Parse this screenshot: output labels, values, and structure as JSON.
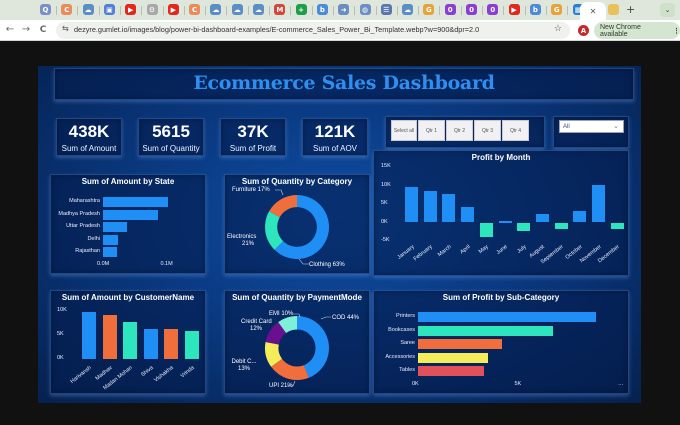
{
  "browser": {
    "tab_favicons": [
      {
        "name": "search-tab",
        "color": "#7b8fc7",
        "glyph": "Q"
      },
      {
        "name": "orange-tab",
        "color": "#e98b5a",
        "glyph": "C"
      },
      {
        "name": "cloud-tab",
        "color": "#5c8dc4",
        "glyph": "☁"
      },
      {
        "name": "docs-tab",
        "color": "#4f7fd6",
        "glyph": "▣"
      },
      {
        "name": "youtube-tab",
        "color": "#e0281f",
        "glyph": "▶"
      },
      {
        "name": "gear-tab",
        "color": "#a8a8a8",
        "glyph": "⚙"
      },
      {
        "name": "youtube-tab",
        "color": "#e0281f",
        "glyph": "▶"
      },
      {
        "name": "orange-tab",
        "color": "#e98b5a",
        "glyph": "C"
      },
      {
        "name": "cloud-tab",
        "color": "#5c8dc4",
        "glyph": "☁"
      },
      {
        "name": "cloud-tab",
        "color": "#5c8dc4",
        "glyph": "☁"
      },
      {
        "name": "cloud-tab",
        "color": "#5c8dc4",
        "glyph": "☁"
      },
      {
        "name": "gmail-tab",
        "color": "#d44638",
        "glyph": "M"
      },
      {
        "name": "sheets-tab",
        "color": "#1e9e4a",
        "glyph": "+"
      },
      {
        "name": "bing-tab",
        "color": "#4d8bd9",
        "glyph": "b"
      },
      {
        "name": "arrow-tab",
        "color": "#6c8dc0",
        "glyph": "➜"
      },
      {
        "name": "globe-tab",
        "color": "#6f8ec4",
        "glyph": "◍"
      },
      {
        "name": "list-tab",
        "color": "#5a77b0",
        "glyph": "☰"
      },
      {
        "name": "cloud-tab",
        "color": "#5c8dc4",
        "glyph": "☁"
      },
      {
        "name": "google-tab",
        "color": "#e8a23a",
        "glyph": "G"
      },
      {
        "name": "purple-tab",
        "color": "#8b3fd0",
        "glyph": "0"
      },
      {
        "name": "purple-tab",
        "color": "#8b3fd0",
        "glyph": "0"
      },
      {
        "name": "purple-tab",
        "color": "#8b3fd0",
        "glyph": "0"
      },
      {
        "name": "youtube-tab",
        "color": "#e0281f",
        "glyph": "▶"
      },
      {
        "name": "bing-tab",
        "color": "#4d8bd9",
        "glyph": "b"
      },
      {
        "name": "google-tab",
        "color": "#e8a23a",
        "glyph": "G"
      },
      {
        "name": "blue-tab",
        "color": "#2b7fd0",
        "glyph": "▦"
      }
    ],
    "active_tab_close": "✕",
    "extra_tab_color": "#e8c15a",
    "new_tab": "+",
    "tab_menu": "⌄",
    "url": "dezyre.gumlet.io/images/blog/power-bi-dashboard-examples/E-commerce_Sales_Power_Bi_Template.webp?w=900&dpr=2.0",
    "profile_initial": "A",
    "update_chip": "New Chrome available",
    "update_menu": "⋮",
    "back": "←",
    "forward": "→",
    "reload": "C",
    "site_info": "⇆",
    "bookmark": "☆"
  },
  "dashboard": {
    "title": "Ecommerce Sales Dashboard",
    "kpis": [
      {
        "value": "438K",
        "label": "Sum of Amount"
      },
      {
        "value": "5615",
        "label": "Sum of Quantity"
      },
      {
        "value": "37K",
        "label": "Sum of Profit"
      },
      {
        "value": "121K",
        "label": "Sum of AOV"
      }
    ],
    "quarter_slicer": [
      "Select all",
      "Qtr 1",
      "Qtr 2",
      "Qtr 3",
      "Qtr 4"
    ],
    "dropdown": {
      "value": "All",
      "chevron": "⌄"
    },
    "colors": {
      "title": "#2f8ff0",
      "blue": "#1f8ff5",
      "teal": "#2ee6be",
      "orange": "#f06e3c",
      "yellow": "#f4ec58",
      "purple": "#6a0f8e",
      "red": "#e0515a",
      "mint": "#7ff0d8"
    }
  },
  "chart_data": [
    {
      "type": "bar",
      "orientation": "horizontal",
      "title": "Sum of Amount by State",
      "categories": [
        "Maharashtra",
        "Madhya Pradesh",
        "Uttar Pradesh",
        "Delhi",
        "Rajasthan"
      ],
      "values": [
        0.102,
        0.087,
        0.038,
        0.023,
        0.022
      ],
      "xlabel": "",
      "ylabel": "",
      "x_ticks": [
        "0.0M",
        "0.1M"
      ],
      "xlim": [
        0,
        0.115
      ]
    },
    {
      "type": "pie",
      "donut": true,
      "title": "Sum of Quantity by Category",
      "categories": [
        "Clothing",
        "Electronics",
        "Furniture"
      ],
      "values": [
        63,
        21,
        17
      ],
      "labels": [
        "Clothing 63%",
        "Electronics 21%",
        "Furniture 17%"
      ]
    },
    {
      "type": "bar",
      "title": "Profit by Month",
      "categories": [
        "January",
        "February",
        "March",
        "April",
        "May",
        "June",
        "July",
        "August",
        "September",
        "October",
        "November",
        "December"
      ],
      "values": [
        9.7,
        8.4,
        7.7,
        4.3,
        -4.0,
        0.4,
        -2.3,
        2.2,
        -1.7,
        3.1,
        10.1,
        -1.8
      ],
      "y_ticks": [
        "15K",
        "10K",
        "5K",
        "0K",
        "-5K"
      ],
      "ylim": [
        -5,
        15
      ],
      "xlabel": "",
      "ylabel": ""
    },
    {
      "type": "bar",
      "title": "Sum of Amount by CustomerName",
      "categories": [
        "Harivansh",
        "Madhav",
        "Madan Mohan",
        "Shiva",
        "Vishakha",
        "Vrinda"
      ],
      "values": [
        9.8,
        9.3,
        7.8,
        6.4,
        6.2,
        5.9
      ],
      "y_ticks": [
        "10K",
        "5K",
        "0K"
      ],
      "ylim": [
        0,
        10.5
      ],
      "xlabel": "",
      "ylabel": ""
    },
    {
      "type": "pie",
      "donut": true,
      "title": "Sum of Quantity by PaymentMode",
      "categories": [
        "COD",
        "UPI",
        "Debit Card",
        "Credit Card",
        "EMI"
      ],
      "values": [
        44,
        21,
        13,
        12,
        10
      ],
      "labels": [
        "COD 44%",
        "UPI 21%",
        "Debit C... 13%",
        "Credit Card 12%",
        "EMI 10%"
      ]
    },
    {
      "type": "bar",
      "orientation": "horizontal",
      "title": "Sum of Profit by Sub-Category",
      "categories": [
        "Printers",
        "Bookcases",
        "Saree",
        "Accessories",
        "Tables"
      ],
      "values": [
        8.7,
        6.6,
        4.1,
        3.4,
        3.2
      ],
      "x_ticks": [
        "0K",
        "5K"
      ],
      "xlim": [
        0,
        10
      ],
      "xlabel": "",
      "ylabel": ""
    }
  ]
}
